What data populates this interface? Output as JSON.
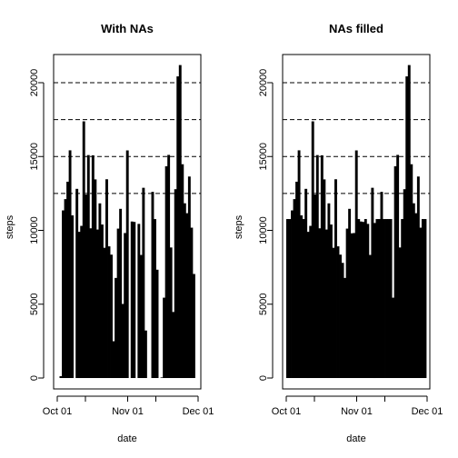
{
  "chart_data": [
    {
      "type": "bar",
      "title": "With NAs",
      "xlabel": "date",
      "ylabel": "steps",
      "x_ticks": [
        "Oct 01",
        "Nov 01",
        "Dec 01"
      ],
      "y_ticks": [
        "0",
        "5000",
        "10000",
        "15000",
        "20000"
      ],
      "ylim": [
        0,
        22000
      ],
      "reference_lines": [
        12500,
        15000,
        17500,
        20000
      ],
      "values": [
        0,
        126,
        11352,
        12116,
        13294,
        15420,
        11015,
        0,
        12811,
        9900,
        10304,
        17382,
        12426,
        15098,
        10139,
        15084,
        13452,
        10056,
        11829,
        10395,
        8821,
        13460,
        8918,
        8355,
        2492,
        6778,
        10119,
        11458,
        5018,
        9819,
        15414,
        0,
        10600,
        10571,
        0,
        10439,
        8334,
        12883,
        3219,
        0,
        0,
        12608,
        10765,
        7336,
        0,
        41,
        5441,
        14339,
        15110,
        8841,
        4472,
        12787,
        20427,
        21194,
        14478,
        11834,
        11162,
        13646,
        10183,
        7047,
        0
      ]
    },
    {
      "type": "bar",
      "title": "NAs filled",
      "xlabel": "date",
      "ylabel": "steps",
      "x_ticks": [
        "Oct 01",
        "Nov 01",
        "Dec 01"
      ],
      "y_ticks": [
        "0",
        "5000",
        "10000",
        "15000",
        "20000"
      ],
      "ylim": [
        0,
        22000
      ],
      "reference_lines": [
        12500,
        15000,
        17500,
        20000
      ],
      "values": [
        10766,
        10766,
        11352,
        12116,
        13294,
        15420,
        11015,
        10766,
        12811,
        9900,
        10304,
        17382,
        12426,
        15098,
        10139,
        15084,
        13452,
        10056,
        11829,
        10395,
        8821,
        13460,
        8918,
        8355,
        7800,
        6778,
        10119,
        11458,
        9800,
        9819,
        15414,
        10766,
        10600,
        10571,
        10766,
        10439,
        8334,
        12883,
        10500,
        10766,
        10766,
        12608,
        10765,
        10766,
        10766,
        10766,
        5441,
        14339,
        15110,
        8841,
        10766,
        12787,
        20427,
        21194,
        14478,
        11834,
        11162,
        13646,
        10183,
        10766,
        10766
      ]
    }
  ]
}
